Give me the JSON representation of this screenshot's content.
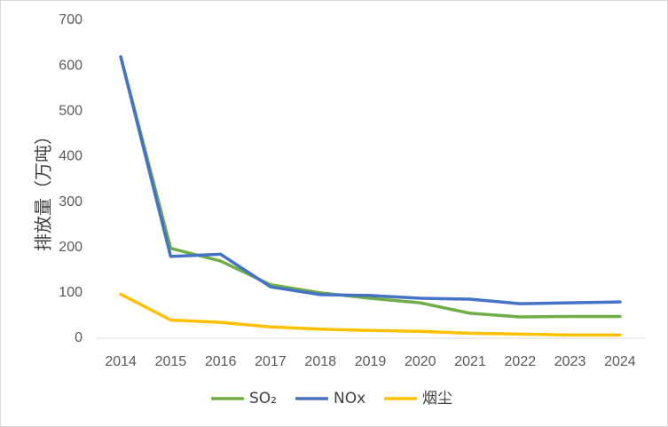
{
  "chart_data": {
    "type": "line",
    "title": "",
    "xlabel": "",
    "ylabel": "排放量（万吨）",
    "ylim": [
      0,
      700
    ],
    "yticks": [
      0,
      100,
      200,
      300,
      400,
      500,
      600,
      700
    ],
    "x": [
      "2014",
      "2015",
      "2016",
      "2017",
      "2018",
      "2019",
      "2020",
      "2021",
      "2022",
      "2023",
      "2024"
    ],
    "grid": false,
    "legend_position": "bottom",
    "series": [
      {
        "name": "SO₂",
        "color": "#70ad47",
        "values": [
          620,
          198,
          170,
          118,
          100,
          88,
          78,
          55,
          47,
          48,
          48
        ]
      },
      {
        "name": "NOx",
        "color": "#4472c4",
        "values": [
          620,
          180,
          185,
          113,
          96,
          94,
          88,
          86,
          76,
          78,
          80
        ]
      },
      {
        "name": "烟尘",
        "color": "#ffc000",
        "values": [
          97,
          40,
          35,
          25,
          20,
          17,
          15,
          11,
          9,
          7,
          7
        ]
      }
    ]
  }
}
